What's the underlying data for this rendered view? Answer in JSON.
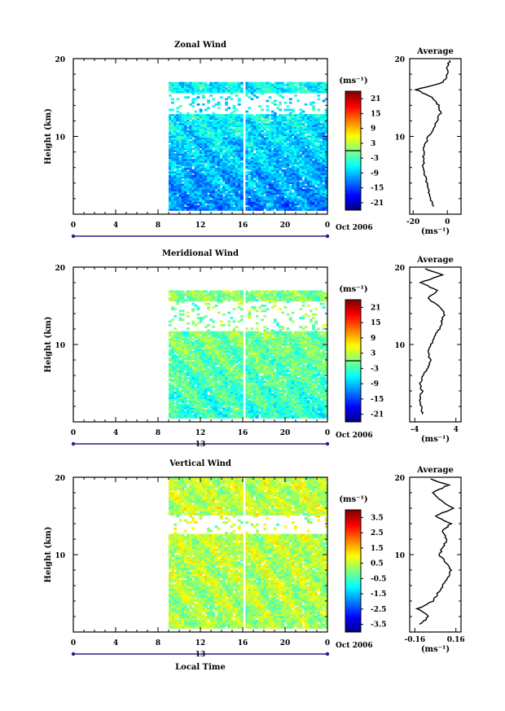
{
  "chart_data": [
    {
      "type": "heatmap",
      "title": "Zonal Wind",
      "ylabel": "Height (km)",
      "ylim": [
        0,
        20
      ],
      "xlim": [
        0,
        24
      ],
      "x_ticks": [
        "0",
        "4",
        "8",
        "12",
        "16",
        "20",
        "0"
      ],
      "y_ticks": [
        "20",
        "10"
      ],
      "date_labels": {
        "mid": "",
        "right": "Oct 2006"
      },
      "data_x_range": [
        9,
        24
      ],
      "colorbar": {
        "unit": "(ms⁻¹)",
        "range": [
          -24,
          24
        ],
        "ticks": [
          "21",
          "15",
          "9",
          "3",
          "-3",
          "-9",
          "-15",
          "-21"
        ],
        "zero_line": 0
      },
      "field": {
        "mean_low": -12,
        "mean_mid": -6,
        "top_km": 17,
        "gap_km": [
          12.8,
          15.5
        ]
      },
      "profile": {
        "title": "Average",
        "xlabel": "(ms⁻¹)",
        "x_ticks": [
          "-20",
          "0"
        ],
        "xlim": [
          -22,
          8
        ],
        "y_ticks": [
          "20",
          "10"
        ],
        "heights": [
          1,
          2,
          3,
          4,
          5,
          6,
          7,
          8,
          9,
          10,
          11,
          12,
          13,
          14,
          15,
          16,
          17,
          18,
          19,
          20
        ],
        "values": [
          -8,
          -10,
          -11,
          -12,
          -13,
          -14,
          -14,
          -14,
          -13,
          -11,
          -8,
          -6,
          -4,
          -5,
          -9,
          -18,
          -2,
          0,
          0,
          2
        ]
      }
    },
    {
      "type": "heatmap",
      "title": "Meridional Wind",
      "ylabel": "Height (km)",
      "ylim": [
        0,
        20
      ],
      "xlim": [
        0,
        24
      ],
      "x_ticks": [
        "0",
        "4",
        "8",
        "12",
        "16",
        "20",
        "0"
      ],
      "y_ticks": [
        "20",
        "10"
      ],
      "date_labels": {
        "mid": "13",
        "right": "Oct 2006"
      },
      "data_x_range": [
        9,
        24
      ],
      "colorbar": {
        "unit": "(ms⁻¹)",
        "range": [
          -24,
          24
        ],
        "ticks": [
          "21",
          "15",
          "9",
          "3",
          "-3",
          "-9",
          "-15",
          "-21"
        ],
        "zero_line": 0
      },
      "field": {
        "mean_low": -4,
        "mean_mid": 0,
        "top_km": 17,
        "gap_km": [
          11.5,
          15.5
        ]
      },
      "profile": {
        "title": "Average",
        "xlabel": "(ms⁻¹)",
        "x_ticks": [
          "-4",
          "4"
        ],
        "xlim": [
          -5,
          5
        ],
        "y_ticks": [
          "20",
          "10"
        ],
        "heights": [
          1,
          2,
          3,
          4,
          5,
          6,
          7,
          8,
          9,
          10,
          11,
          12,
          13,
          14,
          15,
          16,
          17,
          18,
          19,
          20
        ],
        "values": [
          -2.5,
          -2.8,
          -3,
          -2.6,
          -3,
          -2.4,
          -1.5,
          -1.0,
          -1.4,
          -0.8,
          -0.2,
          0.8,
          1.3,
          1.8,
          0.6,
          -1.5,
          0.5,
          -3,
          1.5,
          -3
        ]
      }
    },
    {
      "type": "heatmap",
      "title": "Vertical Wind",
      "ylabel": "Height (km)",
      "xlabel": "Local Time",
      "ylim": [
        0,
        20
      ],
      "xlim": [
        0,
        24
      ],
      "x_ticks": [
        "0",
        "4",
        "8",
        "12",
        "16",
        "20",
        "0"
      ],
      "y_ticks": [
        "20",
        "10"
      ],
      "date_labels": {
        "mid": "13",
        "right": "Oct 2006"
      },
      "data_x_range": [
        9,
        24
      ],
      "colorbar": {
        "unit": "(ms⁻¹)",
        "range": [
          -4,
          4
        ],
        "ticks": [
          "3.5",
          "2.5",
          "1.5",
          "0.5",
          "-0.5",
          "-1.5",
          "-2.5",
          "-3.5"
        ],
        "zero_line": null
      },
      "field": {
        "mean_low": 0.3,
        "mean_mid": 0.5,
        "top_km": 20,
        "gap_km": [
          12.5,
          15
        ]
      },
      "profile": {
        "title": "Average",
        "xlabel": "(ms⁻¹)",
        "x_ticks": [
          "-0.16",
          "0.16"
        ],
        "xlim": [
          -0.2,
          0.2
        ],
        "y_ticks": [
          "20",
          "10"
        ],
        "heights": [
          1,
          2,
          3,
          4,
          5,
          6,
          7,
          8,
          9,
          10,
          11,
          12,
          13,
          14,
          15,
          16,
          17,
          18,
          19,
          20
        ],
        "values": [
          -0.12,
          -0.05,
          -0.14,
          -0.02,
          0.02,
          0.06,
          0.1,
          0.12,
          0.08,
          0.03,
          0.06,
          0.09,
          0.05,
          0.12,
          0.0,
          0.14,
          0.04,
          -0.02,
          0.1,
          -0.08
        ]
      }
    }
  ]
}
